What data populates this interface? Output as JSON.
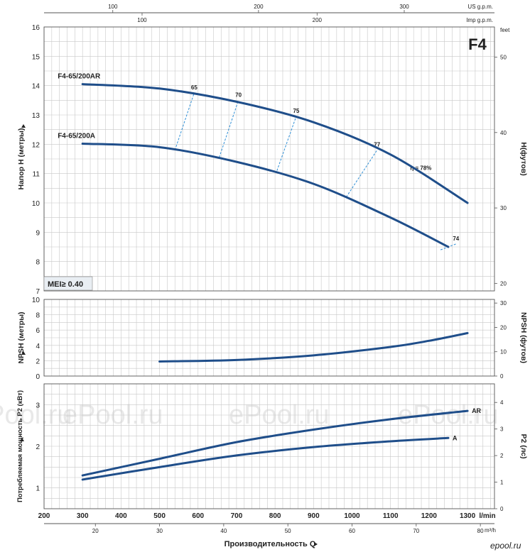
{
  "title": "F4",
  "mei_label": "MEI≥ 0.40",
  "watermark": "ePool.ru",
  "brand_logo": "epool.ru",
  "colors": {
    "curve": "#1f4e8a",
    "efficiency": "#2f8fd6",
    "title": "#1f5fa8",
    "grid": "#c8c8c8"
  },
  "chart_data": [
    {
      "type": "line",
      "name": "head",
      "ylabel": "Напор H (метры)",
      "ylabel_right": "H(футов)",
      "ylim": [
        7,
        16
      ],
      "yticks": [
        7,
        8,
        9,
        10,
        11,
        12,
        13,
        14,
        15,
        16
      ],
      "ylim_right": [
        19,
        54
      ],
      "yticks_right": [
        20,
        30,
        40,
        50
      ],
      "right_unit": "feet",
      "xlim": [
        200,
        1370
      ],
      "series": [
        {
          "name": "F4-65/200AR",
          "x": [
            300,
            500,
            700,
            900,
            1100,
            1300
          ],
          "y": [
            14.05,
            13.9,
            13.45,
            12.75,
            11.65,
            10.0
          ]
        },
        {
          "name": "F4-65/200A",
          "x": [
            300,
            500,
            700,
            900,
            1100,
            1250
          ],
          "y": [
            12.02,
            11.9,
            11.4,
            10.65,
            9.5,
            8.5
          ]
        }
      ],
      "efficiency_lines": [
        {
          "label": "65",
          "from": [
            540,
            11.8
          ],
          "to": [
            590,
            13.75
          ]
        },
        {
          "label": "70",
          "from": [
            655,
            11.55
          ],
          "to": [
            705,
            13.5
          ]
        },
        {
          "label": "75",
          "from": [
            805,
            11.1
          ],
          "to": [
            855,
            12.95
          ]
        },
        {
          "label": "77",
          "from": [
            985,
            10.2
          ],
          "to": [
            1065,
            11.8
          ]
        },
        {
          "label": "η = 78%",
          "from": [
            1140,
            11.0
          ],
          "to": [
            1140,
            11.0
          ]
        },
        {
          "label": "74",
          "from": [
            1230,
            8.4
          ],
          "to": [
            1270,
            8.6
          ]
        }
      ]
    },
    {
      "type": "line",
      "name": "npsh",
      "ylabel": "NPSH (метры)",
      "ylabel_right": "NPSH (футов)",
      "ylim": [
        0,
        10
      ],
      "yticks": [
        0,
        2,
        4,
        6,
        8,
        10
      ],
      "ylim_right": [
        0,
        31.5
      ],
      "yticks_right": [
        0,
        10,
        20,
        30
      ],
      "xlim": [
        200,
        1370
      ],
      "series": [
        {
          "name": "NPSH",
          "x": [
            500,
            700,
            900,
            1100,
            1200,
            1300
          ],
          "y": [
            1.9,
            2.1,
            2.7,
            3.8,
            4.6,
            5.6
          ]
        }
      ]
    },
    {
      "type": "line",
      "name": "power",
      "ylabel": "Потребляемая мощность P2 (кВт)",
      "ylabel_right": "P2 (лс)",
      "ylim": [
        0.5,
        3.5
      ],
      "yticks": [
        1,
        2,
        3
      ],
      "ylim_right": [
        0,
        4.7
      ],
      "yticks_right": [
        0,
        1,
        2,
        3,
        4
      ],
      "xlabel": "Производительность Q",
      "xlim": [
        200,
        1370
      ],
      "series": [
        {
          "name": "AR",
          "x": [
            300,
            500,
            700,
            900,
            1100,
            1300
          ],
          "y": [
            1.3,
            1.7,
            2.1,
            2.4,
            2.65,
            2.85
          ]
        },
        {
          "name": "A",
          "x": [
            300,
            500,
            700,
            900,
            1100,
            1250
          ],
          "y": [
            1.2,
            1.5,
            1.78,
            1.98,
            2.12,
            2.2
          ]
        }
      ]
    }
  ],
  "axes": {
    "lmin_ticks": [
      200,
      300,
      400,
      500,
      600,
      700,
      800,
      900,
      1000,
      1100,
      1200,
      1300
    ],
    "lmin_unit": "l/min",
    "m3h_ticks": [
      20,
      30,
      40,
      50,
      60,
      70,
      80
    ],
    "m3h_unit": "m³/h",
    "usgpm_ticks": [
      100,
      200,
      300
    ],
    "usgpm_unit": "US g.p.m.",
    "impgpm_ticks": [
      100,
      200
    ],
    "impgpm_unit": "Imp g.p.m."
  }
}
